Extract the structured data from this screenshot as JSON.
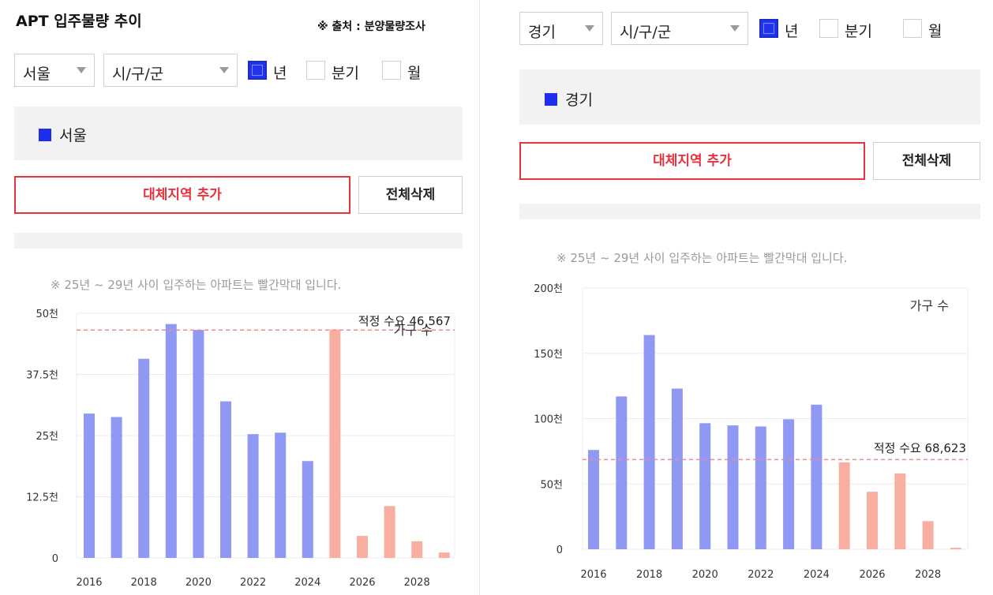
{
  "left": {
    "title": "APT 입주물량 추이",
    "source": "※ 출처 : 분양물량조사",
    "region_select": "서울",
    "district_select": "시/구/군",
    "period_options": [
      {
        "label": "년",
        "checked": true
      },
      {
        "label": "분기",
        "checked": false
      },
      {
        "label": "월",
        "checked": false
      }
    ],
    "region_legend": "서울",
    "add_button": "대체지역 추가",
    "clear_button": "전체삭제",
    "note": "※ 25년 ~ 29년 사이 입주하는 아파트는 빨간막대 입니다."
  },
  "right": {
    "region_select": "경기",
    "district_select": "시/구/군",
    "period_options": [
      {
        "label": "년",
        "checked": true
      },
      {
        "label": "분기",
        "checked": false
      },
      {
        "label": "월",
        "checked": false
      }
    ],
    "region_legend": "경기",
    "add_button": "대체지역 추가",
    "clear_button": "전체삭제",
    "note": "※ 25년 ~ 29년 사이 입주하는 아파트는 빨간막대 입니다."
  },
  "colors": {
    "past_bar": "#8f99f3",
    "future_bar": "#f9aea2",
    "demand_line": "#ef8a8a",
    "accent_red": "#e8323c",
    "legend_blue": "#1f2eee"
  },
  "chart_data": [
    {
      "type": "bar",
      "region": "서울",
      "categories": [
        "2016",
        "2017",
        "2018",
        "2019",
        "2020",
        "2021",
        "2022",
        "2023",
        "2024",
        "2025",
        "2026",
        "2027",
        "2028",
        "2029"
      ],
      "x_tick_labels": [
        "2016",
        "2018",
        "2020",
        "2022",
        "2024",
        "2026",
        "2028"
      ],
      "values": [
        29500,
        28800,
        40700,
        47800,
        46600,
        32000,
        25300,
        25600,
        19800,
        46700,
        4500,
        10600,
        3400,
        1100
      ],
      "highlight_range": [
        "2025",
        "2029"
      ],
      "y_ticks": [
        0,
        12500,
        25000,
        37500,
        50000
      ],
      "y_tick_labels": [
        "0",
        "12.5천",
        "25천",
        "37.5천",
        "50천"
      ],
      "ylim": [
        0,
        50000
      ],
      "reference_line": {
        "label": "적정 수요 46,567",
        "value": 46567
      },
      "series_label": "가구 수",
      "grid": "horizontal"
    },
    {
      "type": "bar",
      "region": "경기",
      "categories": [
        "2016",
        "2017",
        "2018",
        "2019",
        "2020",
        "2021",
        "2022",
        "2023",
        "2024",
        "2025",
        "2026",
        "2027",
        "2028",
        "2029"
      ],
      "x_tick_labels": [
        "2016",
        "2018",
        "2020",
        "2022",
        "2024",
        "2026",
        "2028"
      ],
      "values": [
        76000,
        117000,
        164000,
        123000,
        96500,
        94800,
        94000,
        99500,
        110700,
        66500,
        44000,
        58000,
        21500,
        1100
      ],
      "highlight_range": [
        "2025",
        "2029"
      ],
      "y_ticks": [
        0,
        50000,
        100000,
        150000,
        200000
      ],
      "y_tick_labels": [
        "0",
        "50천",
        "100천",
        "150천",
        "200천"
      ],
      "ylim": [
        0,
        200000
      ],
      "reference_line": {
        "label": "적정 수요 68,623",
        "value": 68623
      },
      "series_label": "가구 수",
      "grid": "horizontal"
    }
  ]
}
